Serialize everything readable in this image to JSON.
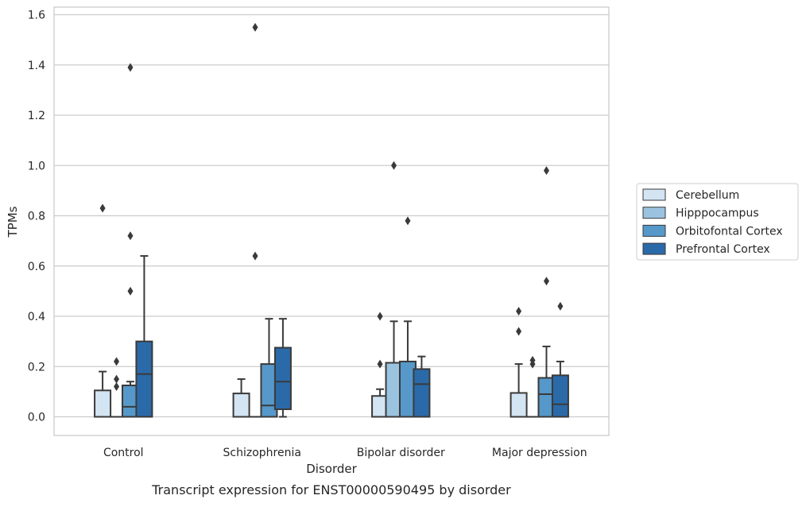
{
  "caption": "Transcript expression for ENST00000590495 by disorder",
  "chart_data": {
    "type": "box",
    "xlabel": "Disorder",
    "ylabel": "TPMs",
    "ylim": [
      -0.075,
      1.63
    ],
    "yticks": [
      "0.0",
      "0.2",
      "0.4",
      "0.6",
      "0.8",
      "1.0",
      "1.2",
      "1.4",
      "1.6"
    ],
    "grid": "horizontal",
    "legend_position": "right",
    "categories": [
      "Control",
      "Schizophrenia",
      "Bipolar disorder",
      "Major depression"
    ],
    "series": [
      {
        "name": "Cerebellum",
        "color": "#d3e4f3",
        "boxes": [
          {
            "min": 0.0,
            "q1": 0.0,
            "median": 0.0,
            "q3": 0.105,
            "max": 0.18,
            "outliers": [
              0.83
            ]
          },
          {
            "min": 0.0,
            "q1": 0.0,
            "median": 0.0,
            "q3": 0.093,
            "max": 0.15,
            "outliers": []
          },
          {
            "min": 0.0,
            "q1": 0.0,
            "median": 0.0,
            "q3": 0.083,
            "max": 0.11,
            "outliers": [
              0.4,
              0.21
            ]
          },
          {
            "min": 0.0,
            "q1": 0.0,
            "median": 0.0,
            "q3": 0.095,
            "max": 0.21,
            "outliers": [
              0.42,
              0.34
            ]
          }
        ]
      },
      {
        "name": "Hipppocampus",
        "color": "#9ac3e0",
        "boxes": [
          {
            "min": 0.0,
            "q1": 0.0,
            "median": 0.0,
            "q3": 0.0,
            "max": 0.0,
            "outliers": [
              0.22,
              0.15,
              0.12
            ]
          },
          {
            "min": 0.0,
            "q1": 0.0,
            "median": 0.0,
            "q3": 0.0,
            "max": 0.0,
            "outliers": [
              1.55,
              0.64
            ]
          },
          {
            "min": 0.0,
            "q1": 0.0,
            "median": 0.0,
            "q3": 0.215,
            "max": 0.38,
            "outliers": [
              1.0
            ]
          },
          {
            "min": 0.0,
            "q1": 0.0,
            "median": 0.0,
            "q3": 0.0,
            "max": 0.0,
            "outliers": [
              0.225,
              0.21
            ]
          }
        ]
      },
      {
        "name": "Orbitofontal Cortex",
        "color": "#5698c9",
        "boxes": [
          {
            "min": 0.0,
            "q1": 0.0,
            "median": 0.04,
            "q3": 0.125,
            "max": 0.14,
            "outliers": [
              1.39,
              0.72,
              0.5
            ]
          },
          {
            "min": 0.0,
            "q1": 0.0,
            "median": 0.045,
            "q3": 0.21,
            "max": 0.39,
            "outliers": []
          },
          {
            "min": 0.0,
            "q1": 0.0,
            "median": 0.0,
            "q3": 0.22,
            "max": 0.38,
            "outliers": [
              0.78
            ]
          },
          {
            "min": 0.0,
            "q1": 0.0,
            "median": 0.09,
            "q3": 0.155,
            "max": 0.28,
            "outliers": [
              0.98,
              0.54
            ]
          }
        ]
      },
      {
        "name": "Prefrontal Cortex",
        "color": "#2b6aa9",
        "boxes": [
          {
            "min": 0.0,
            "q1": 0.0,
            "median": 0.17,
            "q3": 0.3,
            "max": 0.64,
            "outliers": []
          },
          {
            "min": 0.0,
            "q1": 0.03,
            "median": 0.14,
            "q3": 0.275,
            "max": 0.39,
            "outliers": []
          },
          {
            "min": 0.0,
            "q1": 0.0,
            "median": 0.13,
            "q3": 0.19,
            "max": 0.24,
            "outliers": []
          },
          {
            "min": 0.0,
            "q1": 0.0,
            "median": 0.05,
            "q3": 0.165,
            "max": 0.22,
            "outliers": [
              0.44
            ]
          }
        ]
      }
    ]
  }
}
